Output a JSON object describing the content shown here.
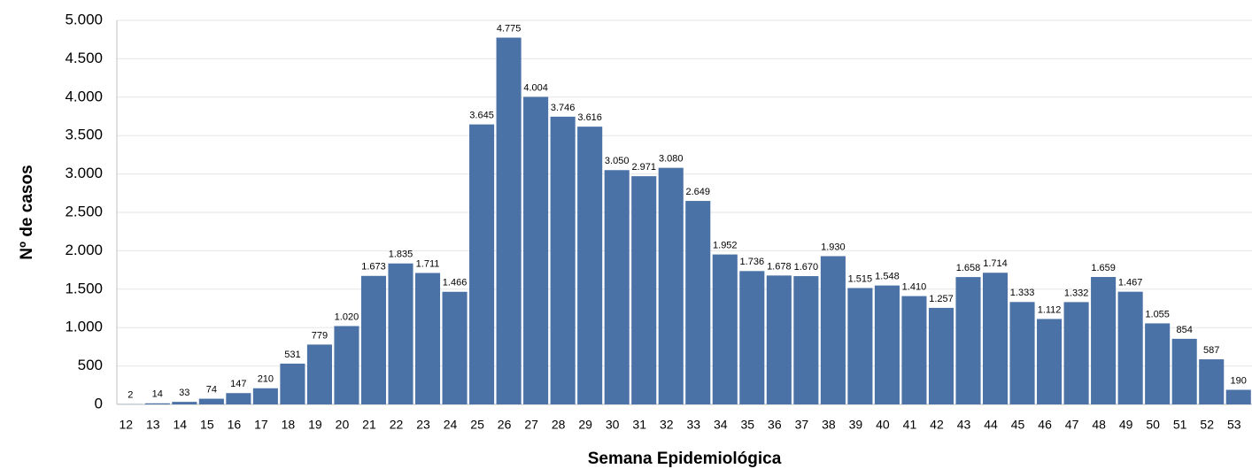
{
  "chart_data": {
    "type": "bar",
    "x_label": "Semana Epidemiológica",
    "y_label": "Nº de casos",
    "categories": [
      "12",
      "13",
      "14",
      "15",
      "16",
      "17",
      "18",
      "19",
      "20",
      "21",
      "22",
      "23",
      "24",
      "25",
      "26",
      "27",
      "28",
      "29",
      "30",
      "31",
      "32",
      "33",
      "34",
      "35",
      "36",
      "37",
      "38",
      "39",
      "40",
      "41",
      "42",
      "43",
      "44",
      "45",
      "46",
      "47",
      "48",
      "49",
      "50",
      "51",
      "52",
      "53"
    ],
    "values": [
      2,
      14,
      33,
      74,
      147,
      210,
      531,
      779,
      1020,
      1673,
      1835,
      1711,
      1466,
      3645,
      4775,
      4004,
      3746,
      3616,
      3050,
      2971,
      3080,
      2649,
      1952,
      1736,
      1678,
      1670,
      1930,
      1515,
      1548,
      1410,
      1257,
      1658,
      1714,
      1333,
      1112,
      1332,
      1659,
      1467,
      1055,
      854,
      587,
      190
    ],
    "value_labels": [
      "2",
      "14",
      "33",
      "74",
      "147",
      "210",
      "531",
      "779",
      "1.020",
      "1.673",
      "1.835",
      "1.711",
      "1.466",
      "3.645",
      "4.775",
      "4.004",
      "3.746",
      "3.616",
      "3.050",
      "2.971",
      "3.080",
      "2.649",
      "1.952",
      "1.736",
      "1.678",
      "1.670",
      "1.930",
      "1.515",
      "1.548",
      "1.410",
      "1.257",
      "1.658",
      "1.714",
      "1.333",
      "1.112",
      "1.332",
      "1.659",
      "1.467",
      "1.055",
      "854",
      "587",
      "190"
    ],
    "color": "#4a72a6",
    "ylim": [
      0,
      5000
    ],
    "yticks": [
      0,
      500,
      {
        "value": 1000,
        "label": "1.000"
      },
      {
        "value": 1500,
        "label": "1.500"
      },
      {
        "value": 2000,
        "label": "2.000"
      },
      {
        "value": 2500,
        "label": "2.500"
      },
      {
        "value": 3000,
        "label": "3.000"
      },
      {
        "value": 3500,
        "label": "3.500"
      },
      {
        "value": 4000,
        "label": "4.000"
      },
      {
        "value": 4500,
        "label": "4.500"
      },
      {
        "value": 5000,
        "label": "5.000"
      }
    ],
    "grid": true
  }
}
